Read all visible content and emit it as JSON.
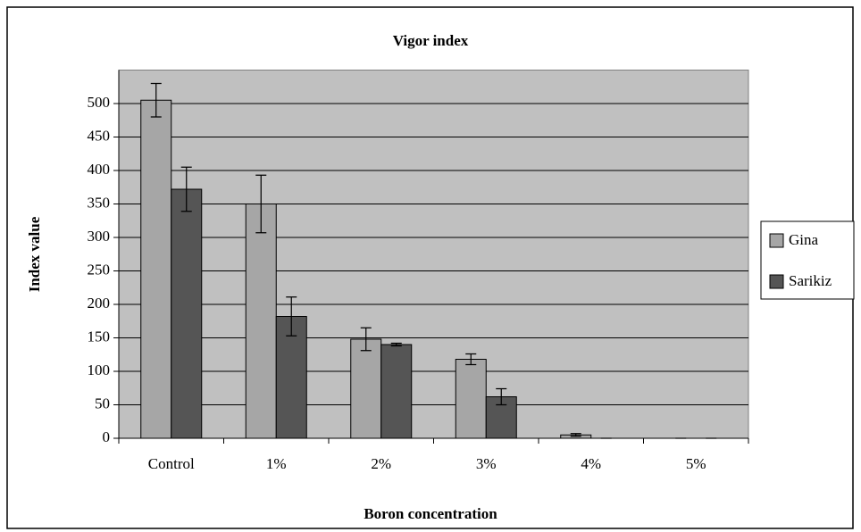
{
  "chart_data": {
    "type": "bar",
    "title": "Vigor index",
    "x_label": "Boron concentration",
    "y_label": "Index value",
    "categories": [
      "Control",
      "1%",
      "2%",
      "3%",
      "4%",
      "5%"
    ],
    "series": [
      {
        "name": "Gina",
        "color": "#a6a6a6",
        "values": [
          505,
          350,
          148,
          118,
          5,
          0
        ],
        "errors": [
          25,
          43,
          17,
          8,
          2,
          0
        ]
      },
      {
        "name": "Sarikiz",
        "color": "#555555",
        "values": [
          372,
          182,
          140,
          62,
          0,
          0
        ],
        "errors": [
          33,
          29,
          2,
          12,
          0,
          0
        ]
      }
    ],
    "ylim": [
      0,
      550
    ],
    "yticks": [
      0,
      50,
      100,
      150,
      200,
      250,
      300,
      350,
      400,
      450,
      500
    ],
    "grid": true,
    "background": "#c0c0c0",
    "legend": "right"
  }
}
